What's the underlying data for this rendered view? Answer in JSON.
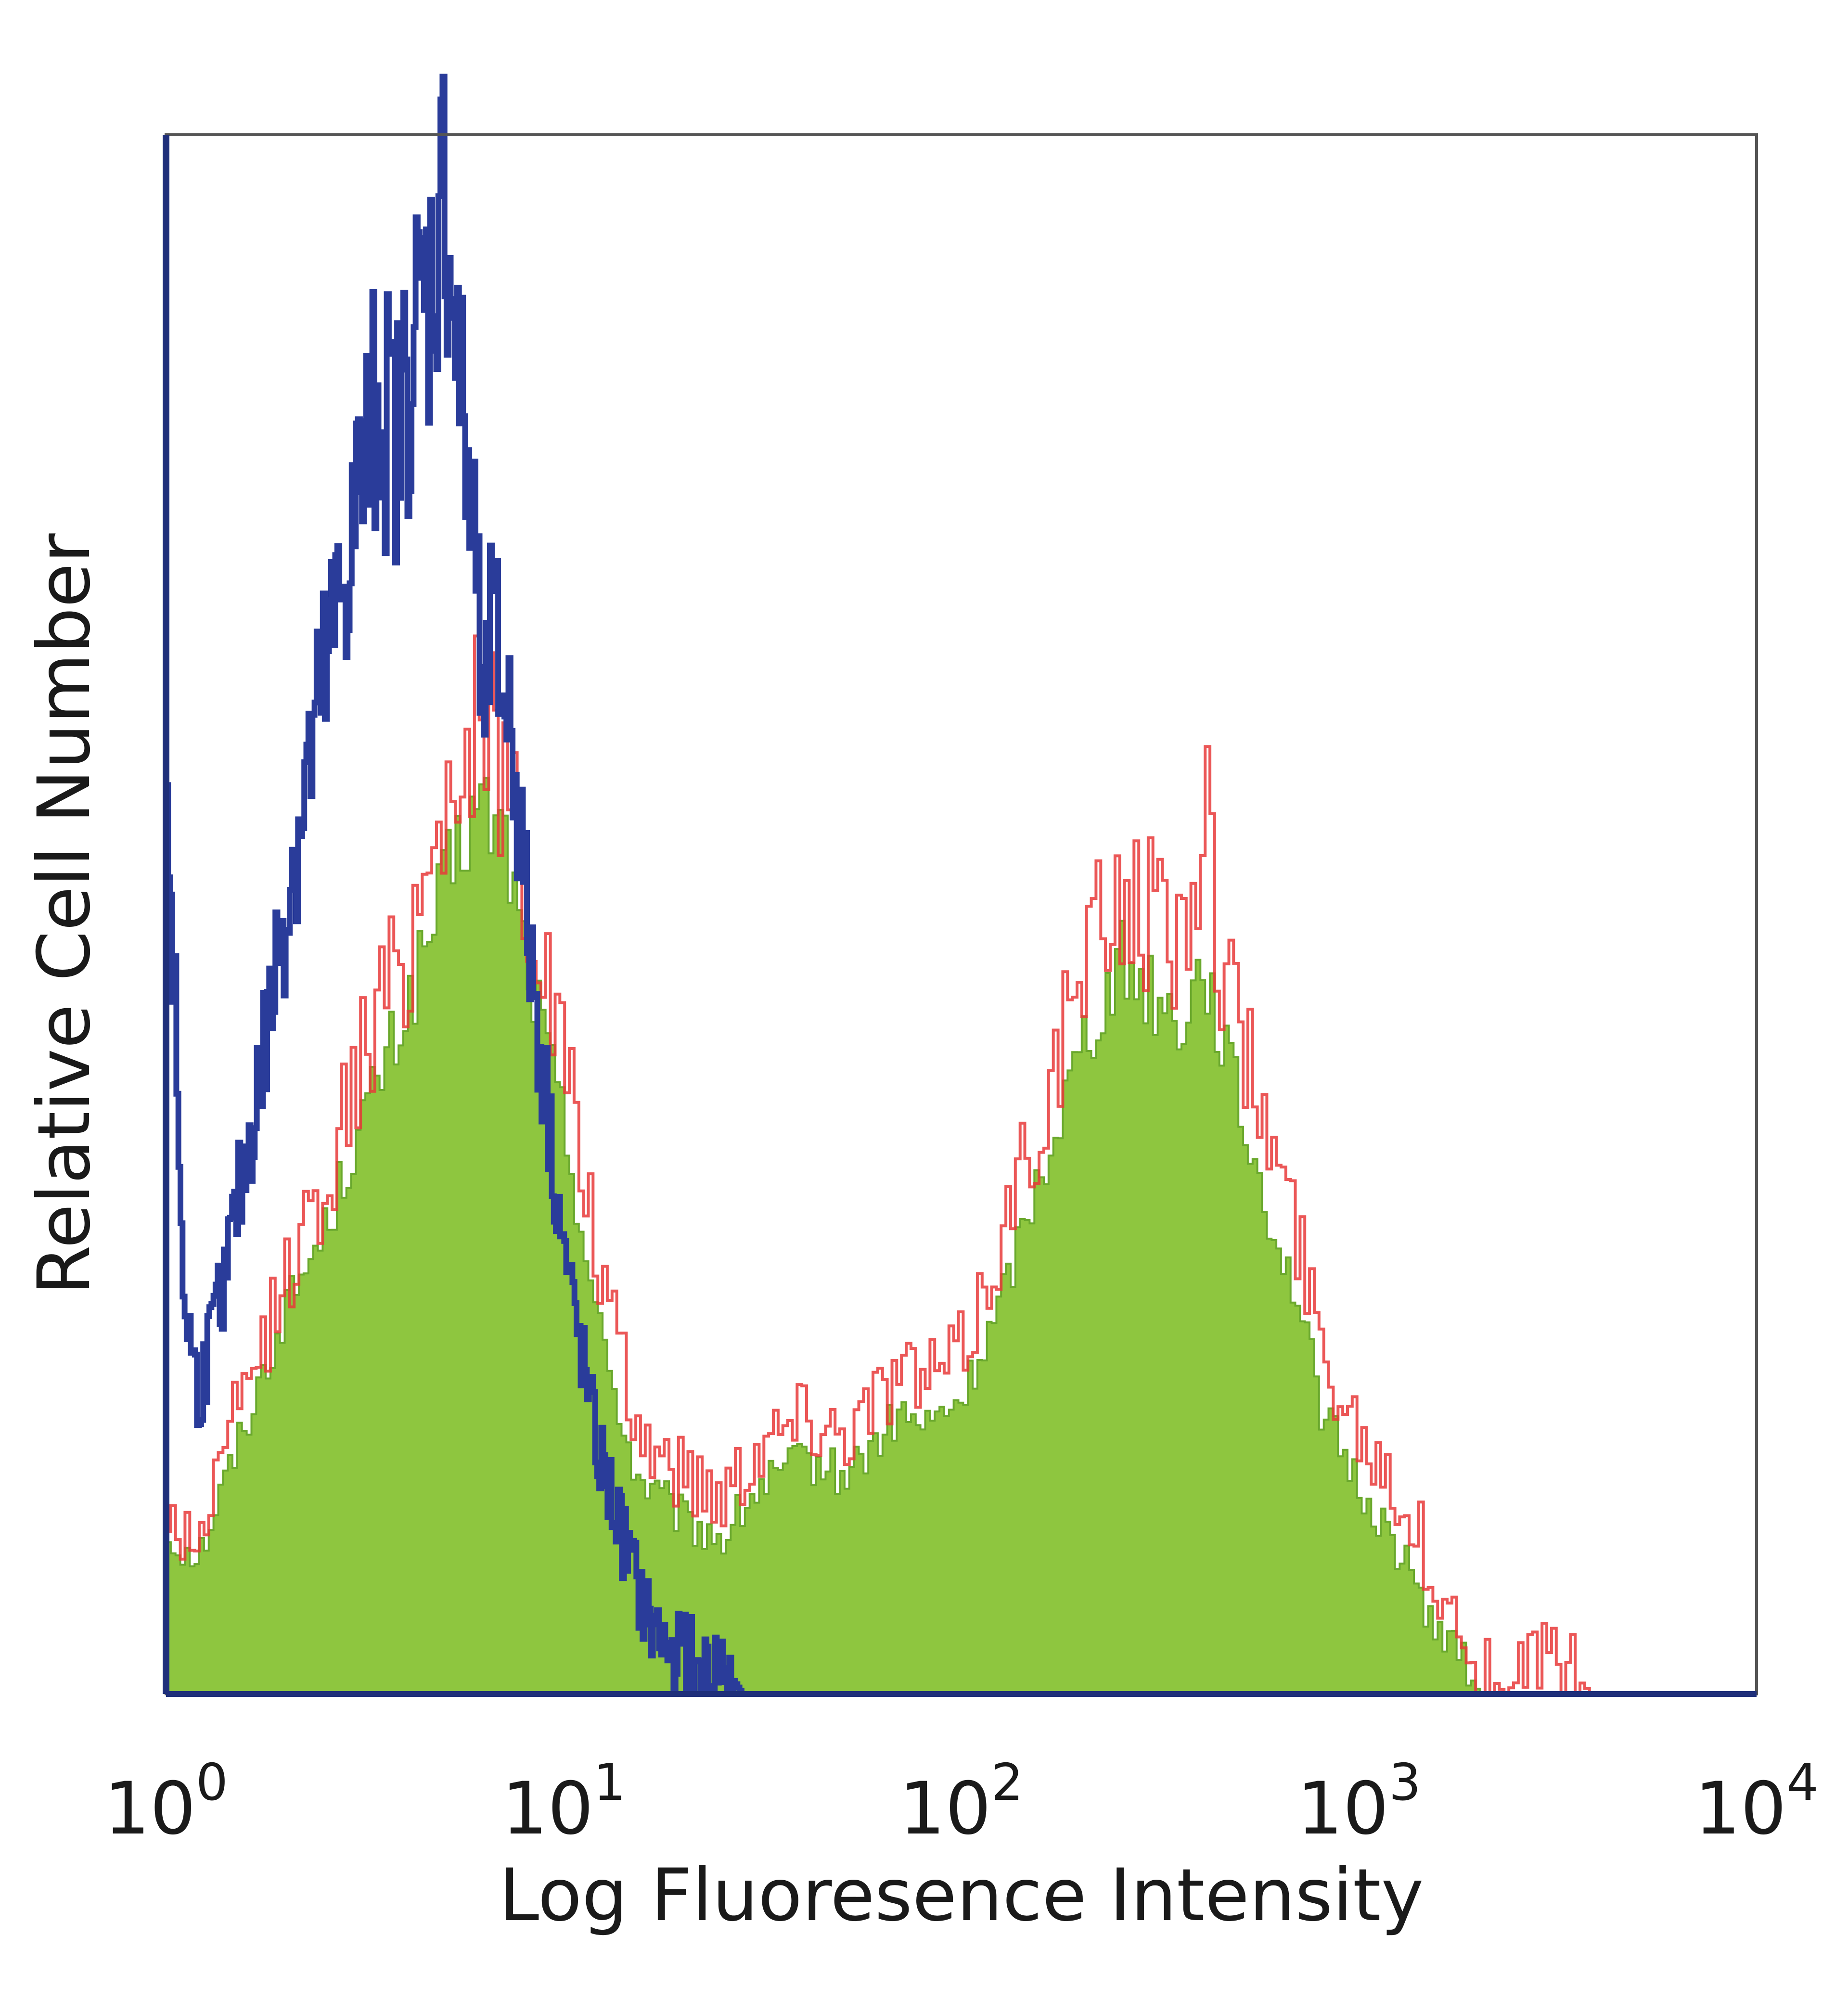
{
  "chart_data": {
    "type": "area",
    "xlabel": "Log Fluoresence Intensity",
    "ylabel": "Relative Cell Number",
    "xscale": "log",
    "xlim": [
      1,
      10000
    ],
    "ylim": [
      0,
      1
    ],
    "grid": false,
    "x_ticks": [
      {
        "base": "10",
        "exp": "0"
      },
      {
        "base": "10",
        "exp": "1"
      },
      {
        "base": "10",
        "exp": "2"
      },
      {
        "base": "10",
        "exp": "3"
      },
      {
        "base": "10",
        "exp": "4"
      }
    ],
    "series": [
      {
        "color": "#8ec63f",
        "style": "filled-area",
        "x": [
          1.0,
          1.2,
          1.5,
          2.0,
          2.5,
          3.0,
          4.0,
          5.0,
          6.0,
          7.0,
          8.0,
          10.0,
          12.0,
          15.0,
          20.0,
          25.0,
          30.0,
          40.0,
          50.0,
          60.0,
          70.0,
          80.0,
          100.0,
          120.0,
          150.0,
          200.0,
          250.0,
          300.0,
          350.0,
          400.0,
          450.0,
          500.0,
          600.0,
          700.0,
          800.0,
          1000.0,
          1200.0,
          1500.0,
          1800.0,
          2000.0,
          2300.0,
          3000.0,
          3800.0
        ],
        "y": [
          0.1,
          0.09,
          0.16,
          0.25,
          0.3,
          0.36,
          0.44,
          0.52,
          0.57,
          0.55,
          0.47,
          0.36,
          0.24,
          0.14,
          0.11,
          0.1,
          0.13,
          0.15,
          0.14,
          0.16,
          0.18,
          0.17,
          0.19,
          0.24,
          0.32,
          0.42,
          0.47,
          0.45,
          0.43,
          0.47,
          0.42,
          0.37,
          0.3,
          0.25,
          0.18,
          0.13,
          0.1,
          0.05,
          0.02,
          0.0,
          0.0,
          0.0,
          0.0
        ]
      },
      {
        "color": "#e83a3a",
        "style": "outline",
        "x": [
          1.0,
          1.2,
          1.5,
          2.0,
          2.5,
          3.0,
          4.0,
          5.0,
          6.0,
          7.0,
          8.0,
          10.0,
          12.0,
          15.0,
          20.0,
          25.0,
          30.0,
          40.0,
          50.0,
          60.0,
          70.0,
          80.0,
          100.0,
          120.0,
          150.0,
          200.0,
          250.0,
          300.0,
          350.0,
          400.0,
          450.0,
          500.0,
          600.0,
          700.0,
          800.0,
          1000.0,
          1200.0,
          1500.0,
          1800.0,
          2000.0,
          2300.0,
          3000.0,
          3800.0
        ],
        "y": [
          0.11,
          0.1,
          0.18,
          0.27,
          0.33,
          0.4,
          0.48,
          0.58,
          0.62,
          0.6,
          0.52,
          0.4,
          0.28,
          0.17,
          0.14,
          0.13,
          0.16,
          0.18,
          0.17,
          0.19,
          0.21,
          0.2,
          0.22,
          0.28,
          0.36,
          0.46,
          0.52,
          0.5,
          0.48,
          0.57,
          0.47,
          0.42,
          0.35,
          0.29,
          0.22,
          0.17,
          0.14,
          0.08,
          0.04,
          0.02,
          0.0,
          0.03,
          0.0
        ]
      },
      {
        "color": "#2a3c9a",
        "style": "outline",
        "x": [
          1.0,
          1.1,
          1.2,
          1.4,
          1.6,
          1.8,
          2.0,
          2.3,
          2.6,
          3.0,
          3.4,
          3.8,
          4.2,
          4.6,
          5.0,
          5.5,
          6.0,
          6.5,
          7.0,
          7.5,
          8.0,
          9.0,
          10.0,
          11.0,
          12.0,
          14.0,
          16.0,
          18.0,
          20.0,
          22.0,
          25.0,
          28.0,
          32.0,
          36.0
        ],
        "y": [
          0.6,
          0.26,
          0.19,
          0.27,
          0.35,
          0.43,
          0.51,
          0.6,
          0.67,
          0.76,
          0.83,
          0.8,
          0.87,
          0.9,
          0.97,
          0.82,
          0.72,
          0.67,
          0.65,
          0.6,
          0.5,
          0.38,
          0.28,
          0.22,
          0.16,
          0.1,
          0.05,
          0.03,
          0.03,
          0.01,
          0.02,
          0.0,
          0.0,
          0.0
        ]
      }
    ]
  }
}
